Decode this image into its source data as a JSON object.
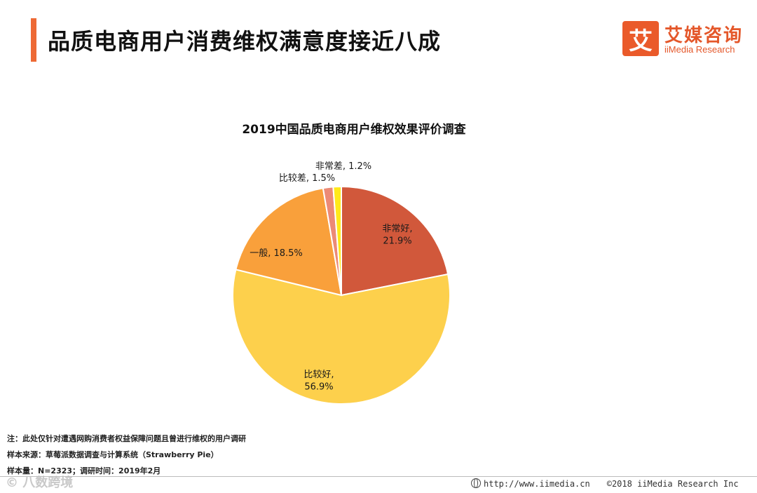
{
  "header": {
    "title": "品质电商用户消费维权满意度接近八成",
    "accent_color": "#ee6a35"
  },
  "logo": {
    "mark": "艾",
    "name_cn": "艾媒咨询",
    "name_en": "iiMedia Research"
  },
  "chart_data": {
    "type": "pie",
    "title": "2019中国品质电商用户维权效果评价调查",
    "unit": "%",
    "slices": [
      {
        "label": "非常好",
        "value": 21.9,
        "color": "#d1583b",
        "display": "非常好,\n21.9%"
      },
      {
        "label": "比较好",
        "value": 56.9,
        "color": "#fdd04c",
        "display": "比较好,\n56.9%"
      },
      {
        "label": "一般",
        "value": 18.5,
        "color": "#f9a03b",
        "display": "一般, 18.5%"
      },
      {
        "label": "比较差",
        "value": 1.5,
        "color": "#ec8a76",
        "display": "比较差, 1.5%"
      },
      {
        "label": "非常差",
        "value": 1.2,
        "color": "#ffe91a",
        "display": "非常差, 1.2%"
      }
    ]
  },
  "footnotes": {
    "note": "注：此处仅针对遭遇网购消费者权益保障问题且曾进行维权的用户调研",
    "source": "样本来源：草莓派数据调查与计算系统（Strawberry  Pie）",
    "sample": "样本量：N=2323；调研时间：2019年2月"
  },
  "footer": {
    "url": "http://www.iimedia.cn",
    "copyright": "©2018  iiMedia Research  Inc"
  },
  "watermark": "©    八数跨境"
}
